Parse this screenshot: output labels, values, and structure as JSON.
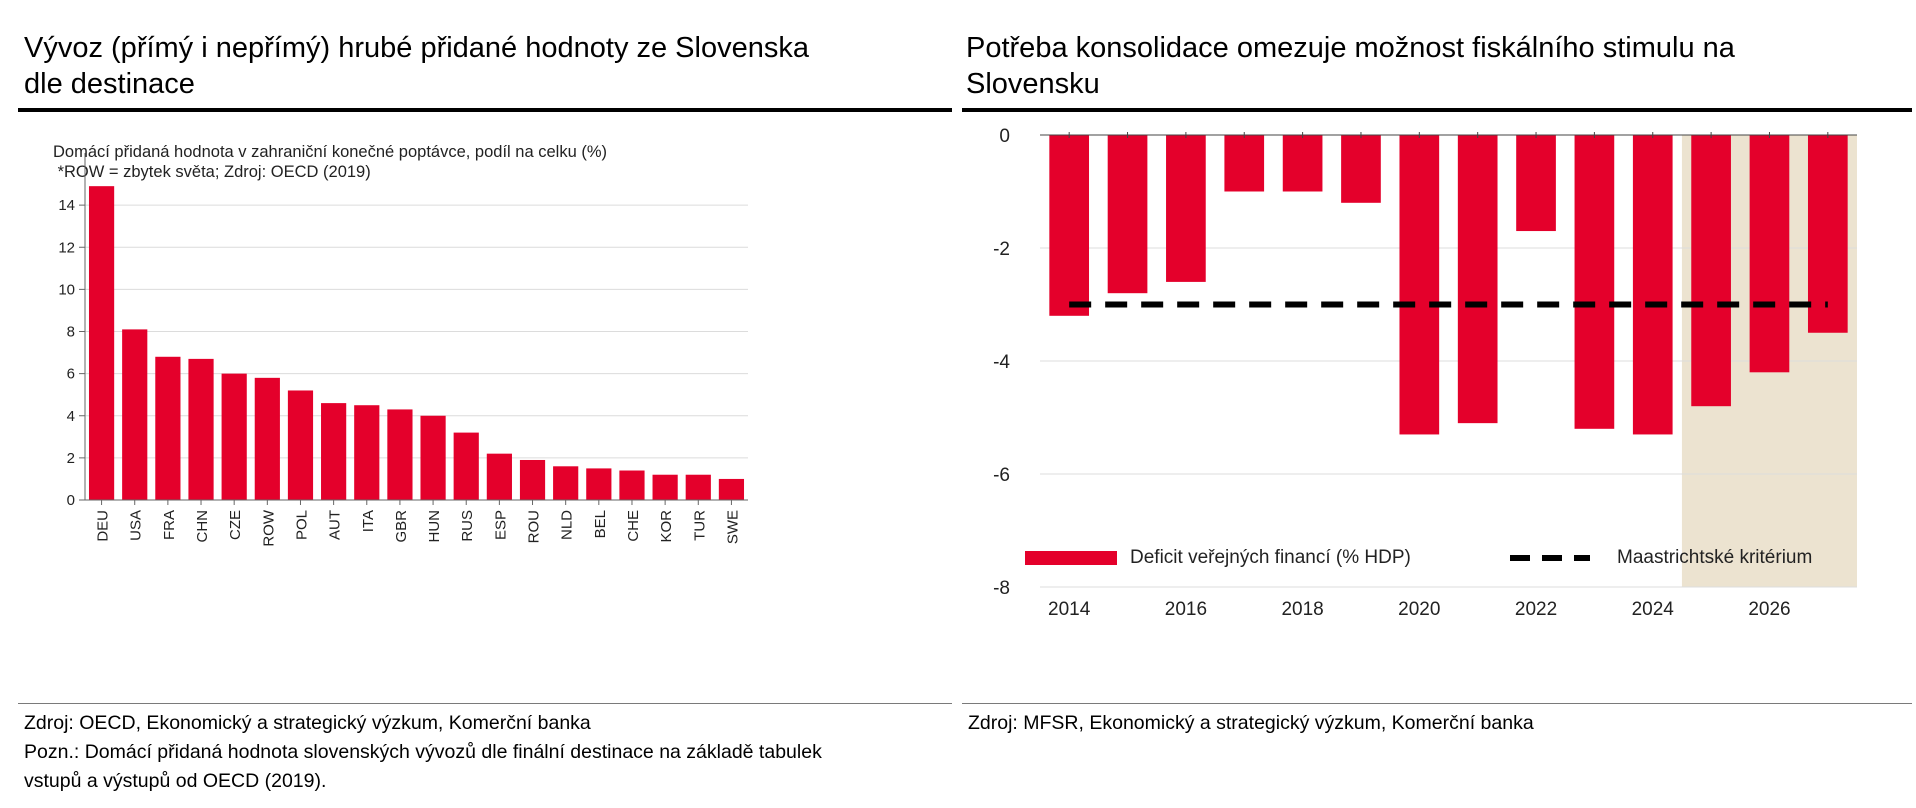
{
  "left": {
    "title_line1": "Vývoz (přímý i nepřímý) hrubé přidané hodnoty ze Slovenska",
    "title_line2": "dle destinace",
    "source": "Zdroj: OECD, Ekonomický a strategický výzkum, Komerční banka",
    "note_line1": "Pozn.: Domácí přidaná hodnota slovenských vývozů dle finální destinace na základě tabulek",
    "note_line2": "vstupů a výstupů od OECD (2019)."
  },
  "right": {
    "title_line1": "Potřeba konsolidace omezuje možnost fiskálního stimulu na",
    "title_line2": "Slovensku",
    "source": "Zdroj: MFSR, Ekonomický a strategický výzkum, Komerční banka"
  },
  "colors": {
    "bar": "#e4002b",
    "forecast_shade": "#ece3d0",
    "grid": "#dcdcdc",
    "axis": "#666666"
  },
  "chart_data": [
    {
      "type": "bar",
      "subtitle_line1": "Domácí přidaná hodnota v zahraniční konečné poptávce, podíl na celku (%)",
      "subtitle_line2": " *ROW = zbytek světa; Zdroj: OECD (2019)",
      "categories": [
        "DEU",
        "USA",
        "FRA",
        "CHN",
        "CZE",
        "ROW",
        "POL",
        "AUT",
        "ITA",
        "GBR",
        "HUN",
        "RUS",
        "ESP",
        "ROU",
        "NLD",
        "BEL",
        "CHE",
        "KOR",
        "TUR",
        "SWE"
      ],
      "values": [
        14.9,
        8.1,
        6.8,
        6.7,
        6.0,
        5.8,
        5.2,
        4.6,
        4.5,
        4.3,
        4.0,
        3.2,
        2.2,
        1.9,
        1.6,
        1.5,
        1.4,
        1.2,
        1.2,
        1.0
      ],
      "ylim": [
        0,
        16
      ],
      "yticks": [
        0,
        2,
        4,
        6,
        8,
        10,
        12,
        14
      ],
      "grid": true
    },
    {
      "type": "bar",
      "x": [
        2014,
        2015,
        2016,
        2017,
        2018,
        2019,
        2020,
        2021,
        2022,
        2023,
        2024,
        2025,
        2026,
        2027
      ],
      "series": [
        {
          "name": "Deficit veřejných financí (% HDP)",
          "values": [
            -3.2,
            -2.8,
            -2.6,
            -1.0,
            -1.0,
            -1.2,
            -5.3,
            -5.1,
            -1.7,
            -5.2,
            -5.3,
            -4.8,
            -4.2,
            -3.5
          ]
        },
        {
          "name": "Maastrichtské kritérium",
          "type": "line",
          "style": "dashed",
          "values": [
            -3,
            -3,
            -3,
            -3,
            -3,
            -3,
            -3,
            -3,
            -3,
            -3,
            -3,
            -3,
            -3,
            -3
          ]
        }
      ],
      "forecast_from": 2025,
      "ylim": [
        -8,
        0
      ],
      "yticks": [
        0,
        -2,
        -4,
        -6,
        -8
      ],
      "xticks": [
        2014,
        2016,
        2018,
        2020,
        2022,
        2024,
        2026
      ],
      "legend": "bottom",
      "grid": true
    }
  ]
}
